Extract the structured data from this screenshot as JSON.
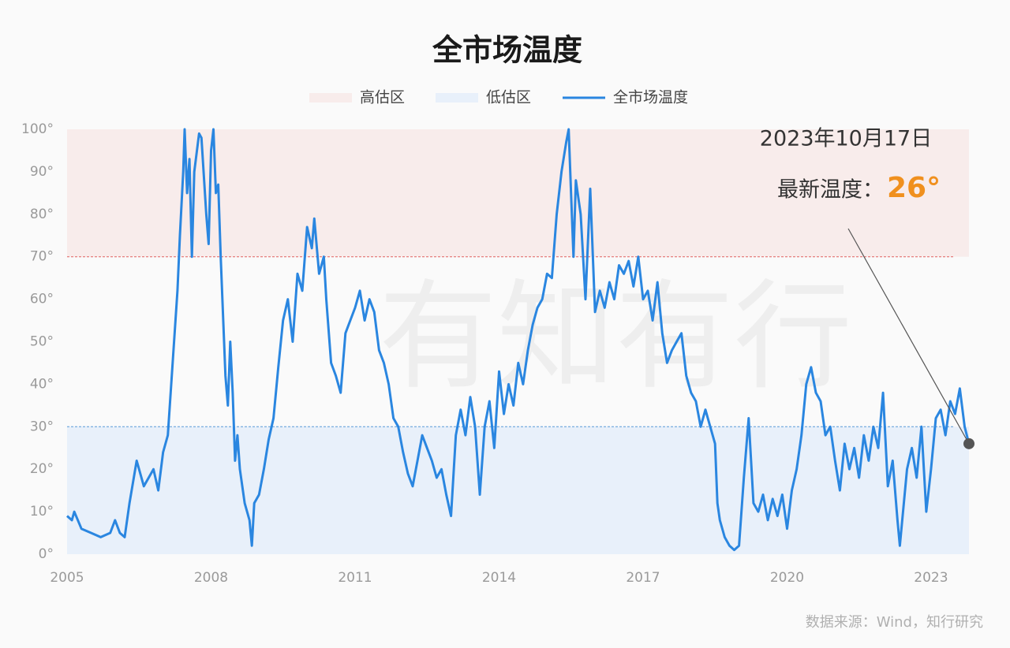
{
  "chart_data": {
    "type": "line",
    "title": "全市场温度",
    "watermark": "有知有行",
    "source": "数据来源：Wind，知行研究",
    "xlim": [
      2005,
      2023.79
    ],
    "xticks": [
      2005,
      2008,
      2011,
      2014,
      2017,
      2020,
      2023
    ],
    "ylim": [
      0,
      100
    ],
    "yticks": [
      {
        "value": 0,
        "label": "0°"
      },
      {
        "value": 10,
        "label": "10°"
      },
      {
        "value": 20,
        "label": "20°"
      },
      {
        "value": 30,
        "label": "30°"
      },
      {
        "value": 40,
        "label": "40°"
      },
      {
        "value": 50,
        "label": "50°"
      },
      {
        "value": 60,
        "label": "60°"
      },
      {
        "value": 70,
        "label": "70°"
      },
      {
        "value": 80,
        "label": "80°"
      },
      {
        "value": 90,
        "label": "90°"
      },
      {
        "value": {
          "value": 100,
          "label": "100°"
        },
        "label": "100°"
      }
    ],
    "bands": [
      {
        "name": "高估区",
        "range": [
          70,
          100
        ],
        "color": "#f8eceb",
        "line_color": "#e06060"
      },
      {
        "name": "低估区",
        "range": [
          0,
          30
        ],
        "color": "#e8f0fa",
        "line_color": "#5a9ad8"
      }
    ],
    "annotation": {
      "date": "2023年10月17日",
      "text": "最新温度：",
      "value": 26,
      "value_label": "26°",
      "color": "#f0901e"
    },
    "x": [
      2005.0,
      2005.1,
      2005.15,
      2005.3,
      2005.5,
      2005.7,
      2005.9,
      2006.0,
      2006.1,
      2006.2,
      2006.3,
      2006.45,
      2006.6,
      2006.8,
      2006.9,
      2007.0,
      2007.1,
      2007.2,
      2007.3,
      2007.35,
      2007.42,
      2007.45,
      2007.5,
      2007.55,
      2007.6,
      2007.65,
      2007.75,
      2007.8,
      2007.9,
      2007.95,
      2008.0,
      2008.05,
      2008.1,
      2008.15,
      2008.2,
      2008.3,
      2008.35,
      2008.4,
      2008.45,
      2008.5,
      2008.55,
      2008.6,
      2008.7,
      2008.8,
      2008.85,
      2008.9,
      2009.0,
      2009.1,
      2009.2,
      2009.3,
      2009.4,
      2009.5,
      2009.6,
      2009.7,
      2009.8,
      2009.9,
      2010.0,
      2010.1,
      2010.15,
      2010.25,
      2010.35,
      2010.4,
      2010.5,
      2010.6,
      2010.7,
      2010.8,
      2010.9,
      2011.0,
      2011.1,
      2011.2,
      2011.3,
      2011.4,
      2011.5,
      2011.6,
      2011.7,
      2011.8,
      2011.9,
      2012.0,
      2012.1,
      2012.2,
      2012.3,
      2012.4,
      2012.5,
      2012.6,
      2012.7,
      2012.8,
      2012.9,
      2013.0,
      2013.1,
      2013.2,
      2013.3,
      2013.4,
      2013.5,
      2013.6,
      2013.7,
      2013.8,
      2013.9,
      2014.0,
      2014.1,
      2014.2,
      2014.3,
      2014.4,
      2014.5,
      2014.6,
      2014.7,
      2014.8,
      2014.9,
      2015.0,
      2015.1,
      2015.2,
      2015.3,
      2015.4,
      2015.45,
      2015.5,
      2015.55,
      2015.6,
      2015.7,
      2015.8,
      2015.9,
      2016.0,
      2016.1,
      2016.2,
      2016.3,
      2016.4,
      2016.5,
      2016.6,
      2016.7,
      2016.8,
      2016.9,
      2017.0,
      2017.1,
      2017.2,
      2017.3,
      2017.4,
      2017.5,
      2017.6,
      2017.7,
      2017.8,
      2017.9,
      2018.0,
      2018.1,
      2018.2,
      2018.3,
      2018.4,
      2018.5,
      2018.55,
      2018.6,
      2018.7,
      2018.8,
      2018.9,
      2019.0,
      2019.1,
      2019.2,
      2019.3,
      2019.4,
      2019.5,
      2019.6,
      2019.7,
      2019.8,
      2019.9,
      2020.0,
      2020.1,
      2020.2,
      2020.3,
      2020.4,
      2020.5,
      2020.6,
      2020.7,
      2020.8,
      2020.9,
      2021.0,
      2021.1,
      2021.2,
      2021.3,
      2021.4,
      2021.5,
      2021.6,
      2021.7,
      2021.8,
      2021.9,
      2022.0,
      2022.1,
      2022.2,
      2022.3,
      2022.35,
      2022.5,
      2022.6,
      2022.7,
      2022.8,
      2022.9,
      2023.0,
      2023.1,
      2023.2,
      2023.3,
      2023.4,
      2023.5,
      2023.6,
      2023.7,
      2023.79
    ],
    "series": [
      {
        "name": "全市场温度",
        "color": "#2a86e0",
        "values": [
          9,
          8,
          10,
          6,
          5,
          4,
          5,
          8,
          5,
          4,
          12,
          22,
          16,
          20,
          15,
          24,
          28,
          45,
          62,
          75,
          90,
          100,
          85,
          93,
          70,
          90,
          99,
          98,
          80,
          73,
          95,
          100,
          85,
          87,
          70,
          42,
          35,
          50,
          38,
          22,
          28,
          20,
          12,
          8,
          2,
          12,
          14,
          20,
          27,
          32,
          44,
          55,
          60,
          50,
          66,
          62,
          77,
          72,
          79,
          66,
          70,
          60,
          45,
          42,
          38,
          52,
          55,
          58,
          62,
          55,
          60,
          57,
          48,
          45,
          40,
          32,
          30,
          24,
          19,
          16,
          22,
          28,
          25,
          22,
          18,
          20,
          14,
          9,
          28,
          34,
          28,
          37,
          30,
          14,
          30,
          36,
          25,
          43,
          33,
          40,
          35,
          45,
          40,
          48,
          54,
          58,
          60,
          66,
          65,
          80,
          90,
          97,
          100,
          85,
          70,
          88,
          80,
          60,
          86,
          57,
          62,
          58,
          64,
          60,
          68,
          66,
          69,
          63,
          70,
          60,
          62,
          55,
          64,
          52,
          45,
          48,
          50,
          52,
          42,
          38,
          36,
          30,
          34,
          30,
          26,
          12,
          8,
          4,
          2,
          1,
          2,
          18,
          32,
          12,
          10,
          14,
          8,
          13,
          9,
          14,
          6,
          15,
          20,
          28,
          40,
          44,
          38,
          36,
          28,
          30,
          22,
          15,
          26,
          20,
          25,
          18,
          28,
          22,
          30,
          25,
          38,
          16,
          22,
          8,
          2,
          20,
          25,
          18,
          30,
          10,
          20,
          32,
          34,
          28,
          36,
          33,
          39,
          30,
          26
        ]
      }
    ]
  }
}
